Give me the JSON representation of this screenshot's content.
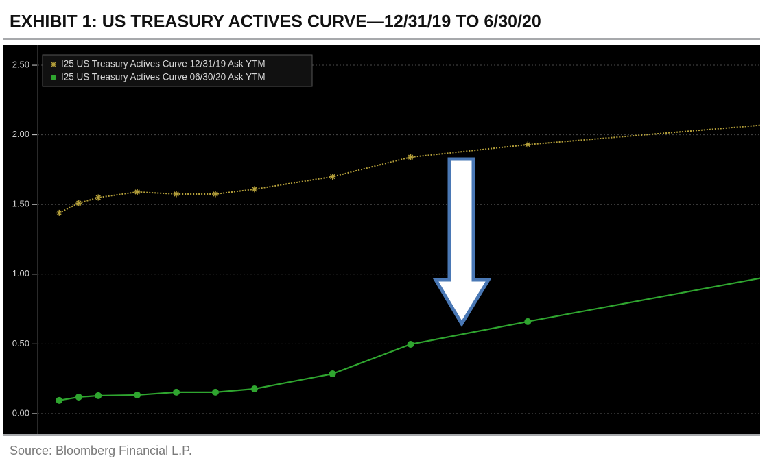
{
  "chart_data": {
    "type": "line",
    "title": "EXHIBIT 1: US TREASURY ACTIVES CURVE—12/31/19 TO 6/30/20",
    "source": "Source: Bloomberg Financial L.P.",
    "x": [
      0,
      1,
      2,
      4,
      6,
      8,
      10,
      14,
      18,
      24,
      36
    ],
    "xlim": [
      -1.1,
      35.9
    ],
    "ylim": [
      -0.148,
      2.643
    ],
    "yticks": [
      {
        "value": 0,
        "label": "0.00"
      },
      {
        "value": 0.5,
        "label": "0.50"
      },
      {
        "value": 1,
        "label": "1.00"
      },
      {
        "value": 1.5,
        "label": "1.50"
      },
      {
        "value": 2,
        "label": "2.00"
      },
      {
        "value": 2.5,
        "label": "2.50"
      }
    ],
    "grid": true,
    "legend": "upper left",
    "series": [
      {
        "name": "I25 US Treasury Actives Curve 12/31/19 Ask YTM",
        "color": "#b5a03a",
        "marker": "star",
        "dash": true,
        "values": [
          1.44,
          1.51,
          1.55,
          1.59,
          1.575,
          1.575,
          1.61,
          1.7,
          1.84,
          1.93,
          2.07
        ]
      },
      {
        "name": "I25 US Treasury Actives Curve 06/30/20 Ask YTM",
        "color": "#2fa52f",
        "marker": "circle",
        "dash": false,
        "values": [
          0.094,
          0.118,
          0.128,
          0.133,
          0.153,
          0.153,
          0.177,
          0.285,
          0.497,
          0.66,
          0.974
        ]
      }
    ]
  }
}
